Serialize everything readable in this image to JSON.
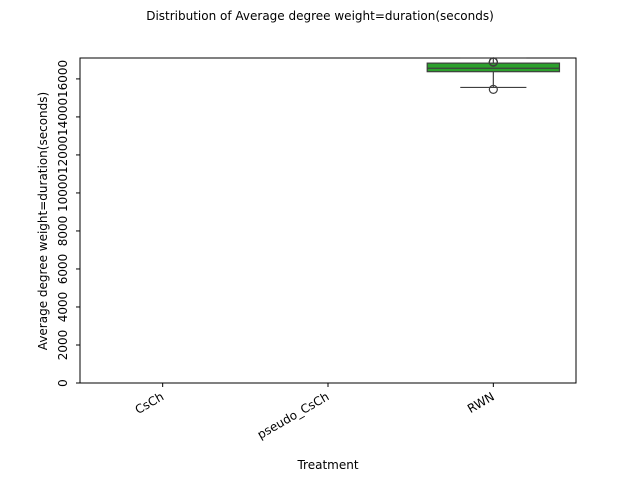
{
  "chart_data": {
    "type": "box",
    "title": "Distribution of Average degree weight=duration(seconds)",
    "xlabel": "Treatment",
    "ylabel": "Average degree weight=duration(seconds)",
    "categories": [
      "CsCh",
      "pseudo_CsCh",
      "RWN"
    ],
    "ylim": [
      0,
      17100
    ],
    "yticks": [
      0,
      2000,
      4000,
      6000,
      8000,
      10000,
      12000,
      14000,
      16000
    ],
    "ytick_labels": [
      "0",
      "2000",
      "4000",
      "6000",
      "8000",
      "10000",
      "12000",
      "14000",
      "16000"
    ],
    "grid": false,
    "legend": "none",
    "boxes": [
      {
        "category": "CsCh",
        "present": false
      },
      {
        "category": "pseudo_CsCh",
        "present": false
      },
      {
        "category": "RWN",
        "present": true,
        "color": "#2ca02c",
        "whisker_low": 15550,
        "q1": 16380,
        "median": 16560,
        "q3": 16830,
        "whisker_high": 17520,
        "outliers": [
          15450,
          17700,
          17730,
          17780,
          17800
        ]
      }
    ]
  }
}
